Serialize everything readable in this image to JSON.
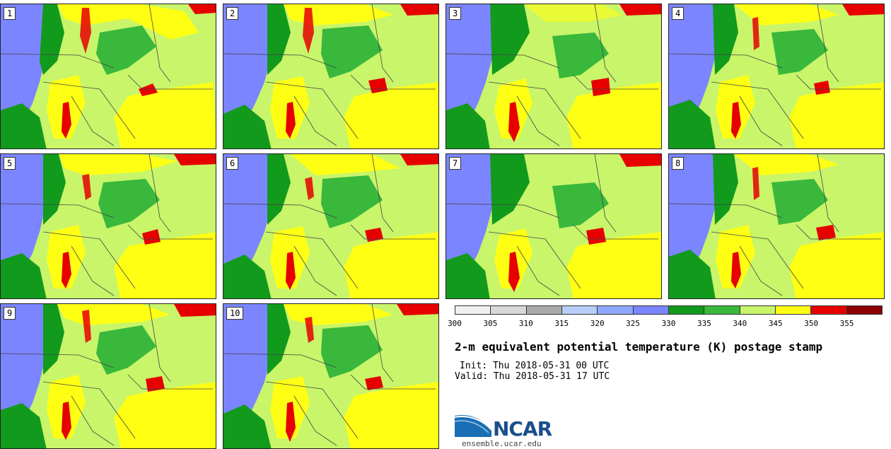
{
  "members": [
    "1",
    "2",
    "3",
    "4",
    "5",
    "6",
    "7",
    "8",
    "9",
    "10"
  ],
  "colorbar": {
    "colors": [
      "#f0f0f0",
      "#d8d8d8",
      "#aaaaaa",
      "#b8cdf8",
      "#8fa8ff",
      "#7b85ff",
      "#129a1c",
      "#39b83c",
      "#c8f56a",
      "#ffff14",
      "#e60000",
      "#8c0000"
    ],
    "ticks": [
      "300",
      "305",
      "310",
      "315",
      "320",
      "325",
      "330",
      "335",
      "340",
      "345",
      "350",
      "355"
    ]
  },
  "title": "2-m equivalent potential temperature (K) postage stamp",
  "init": "Init: Thu 2018-05-31 00 UTC",
  "valid": "Valid: Thu 2018-05-31 17 UTC",
  "logo": {
    "text": "NCAR",
    "url": "ensemble.ucar.edu"
  }
}
